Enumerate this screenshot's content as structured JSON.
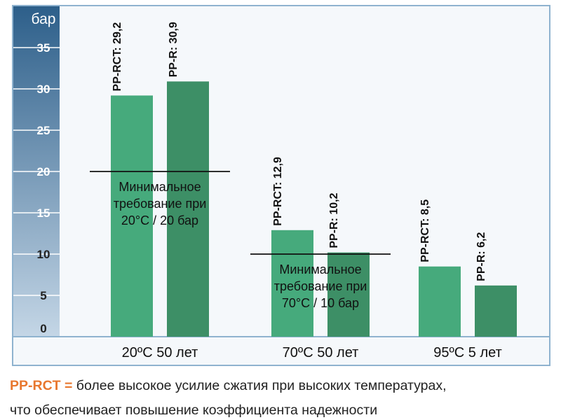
{
  "chart_data": {
    "type": "bar",
    "ylabel": "бар",
    "ylim": [
      0,
      40
    ],
    "yticks": [
      0,
      5,
      10,
      15,
      20,
      25,
      30,
      35
    ],
    "categories": [
      "20ºC 50 лет",
      "70ºC 50 лет",
      "95ºC 5 лет"
    ],
    "series": [
      {
        "name": "PP-RCT",
        "color": "#46aa7c",
        "values": [
          29.2,
          12.9,
          8.5
        ],
        "labels": [
          "PP-RCT: 29,2",
          "PP-RCT: 12,9",
          "PP-RCT: 8,5"
        ]
      },
      {
        "name": "PP-R",
        "color": "#3d8f66",
        "values": [
          30.9,
          10.2,
          6.2
        ],
        "labels": [
          "PP-R: 30,9",
          "PP-R: 10,2",
          "PP-R: 6,2"
        ]
      }
    ],
    "annotations": [
      {
        "category_index": 0,
        "value": 20,
        "lines": [
          "Минимальное",
          "требование при",
          "20°C / 20 бар"
        ]
      },
      {
        "category_index": 1,
        "value": 10,
        "lines": [
          "Минимальное",
          "требование при",
          "70°C / 10 бар"
        ]
      }
    ],
    "colors": {
      "plot_bg": "#f5f8fb",
      "frame": "#8fb3cf",
      "axis_dark": "#2d5f8a",
      "axis_light": "#c4d6e6"
    }
  },
  "footnote": {
    "highlight": "PP-RCT =",
    "line1": " более высокое усилие сжатия при высоких температурах,",
    "line2": "что обеспечивает повышение коэффициента надежности"
  }
}
